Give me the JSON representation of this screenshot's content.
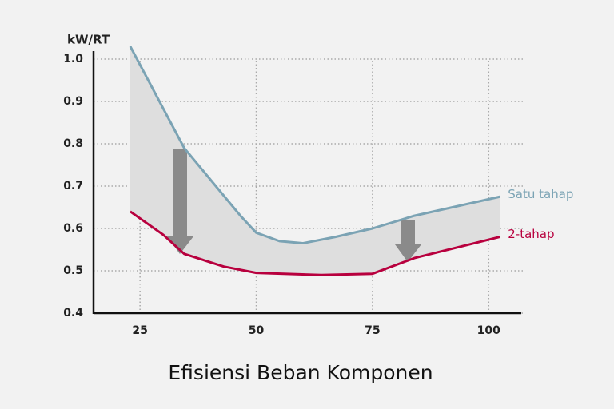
{
  "chart_data": {
    "type": "line",
    "y_label": "kW/RT",
    "x_label": "Efisiensi Beban Komponen",
    "xlim": [
      15,
      107
    ],
    "xticks": [
      25,
      50,
      75,
      100
    ],
    "ylim": [
      0.4,
      1.0
    ],
    "yticks": [
      0.4,
      0.5,
      0.6,
      0.7,
      0.8,
      0.9,
      {
        "value": 1,
        "label": "1.0"
      }
    ],
    "grid": true,
    "series": [
      {
        "name": "Satu tahap",
        "color": "#7ba3b4",
        "x": [
          22.9,
          34.5,
          46.6,
          50,
          55,
          60,
          67,
          75,
          84,
          102.4
        ],
        "values": [
          1.03,
          0.79,
          0.63,
          0.59,
          0.57,
          0.565,
          0.58,
          0.6,
          0.63,
          0.675
        ]
      },
      {
        "name": "2-tahap",
        "color": "#b8003e",
        "x": [
          22.9,
          30,
          34.5,
          43,
          50,
          64,
          75,
          84,
          102.4
        ],
        "values": [
          0.64,
          0.585,
          0.54,
          0.51,
          0.495,
          0.49,
          0.493,
          0.53,
          0.58
        ]
      }
    ]
  }
}
